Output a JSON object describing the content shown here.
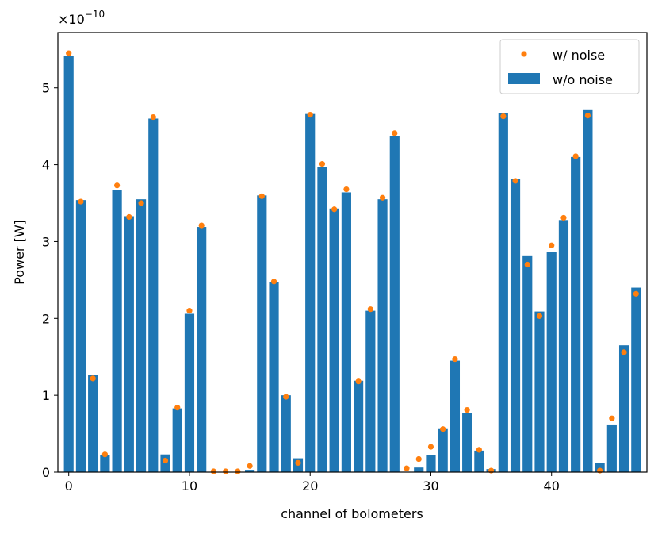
{
  "chart_data": {
    "type": "bar",
    "title": "",
    "xlabel": "channel of bolometers",
    "ylabel": "Power [W]",
    "y_offset_text": {
      "prefix": "×10",
      "exponent": "−10"
    },
    "xlim": [
      -0.9,
      47.9
    ],
    "ylim": [
      0,
      5.72
    ],
    "xticks": [
      0,
      10,
      20,
      30,
      40
    ],
    "yticks": [
      0,
      1,
      2,
      3,
      4,
      5
    ],
    "legend_position": "top-right",
    "colors": {
      "bars": "#1f77b4",
      "points": "#ff7f0e"
    },
    "series": [
      {
        "name": "w/o noise",
        "kind": "bar",
        "x": [
          0,
          1,
          2,
          3,
          4,
          5,
          6,
          7,
          8,
          9,
          10,
          11,
          12,
          13,
          14,
          15,
          16,
          17,
          18,
          19,
          20,
          21,
          22,
          23,
          24,
          25,
          26,
          27,
          28,
          29,
          30,
          31,
          32,
          33,
          34,
          35,
          36,
          37,
          38,
          39,
          40,
          41,
          42,
          43,
          44,
          45,
          46,
          47
        ],
        "values": [
          5.42,
          3.54,
          1.26,
          0.22,
          3.67,
          3.33,
          3.55,
          4.6,
          0.23,
          0.83,
          2.06,
          3.19,
          0.0,
          0.0,
          0.0,
          0.03,
          3.6,
          2.47,
          1.0,
          0.18,
          4.66,
          3.97,
          3.43,
          3.64,
          1.19,
          2.1,
          3.55,
          4.37,
          0.0,
          0.06,
          0.22,
          0.56,
          1.45,
          0.77,
          0.28,
          0.04,
          4.67,
          3.81,
          2.81,
          2.09,
          2.86,
          3.28,
          4.1,
          4.71,
          0.12,
          0.62,
          1.65,
          2.4
        ]
      },
      {
        "name": "w/ noise",
        "kind": "scatter",
        "x": [
          0,
          1,
          2,
          3,
          4,
          5,
          6,
          7,
          8,
          9,
          10,
          11,
          12,
          13,
          14,
          15,
          16,
          17,
          18,
          19,
          20,
          21,
          22,
          23,
          24,
          25,
          26,
          27,
          28,
          29,
          30,
          31,
          32,
          33,
          34,
          35,
          36,
          37,
          38,
          39,
          40,
          41,
          42,
          43,
          44,
          45,
          46,
          47
        ],
        "values": [
          5.45,
          3.52,
          1.22,
          0.23,
          3.73,
          3.32,
          3.5,
          4.62,
          0.15,
          0.84,
          2.1,
          3.21,
          0.01,
          0.01,
          0.01,
          0.08,
          3.59,
          2.48,
          0.98,
          0.12,
          4.65,
          4.01,
          3.42,
          3.68,
          1.18,
          2.12,
          3.57,
          4.41,
          0.05,
          0.17,
          0.33,
          0.56,
          1.47,
          0.81,
          0.29,
          0.02,
          4.63,
          3.79,
          2.7,
          2.03,
          2.95,
          3.31,
          4.11,
          4.64,
          0.02,
          0.7,
          1.56,
          2.32
        ]
      }
    ]
  }
}
